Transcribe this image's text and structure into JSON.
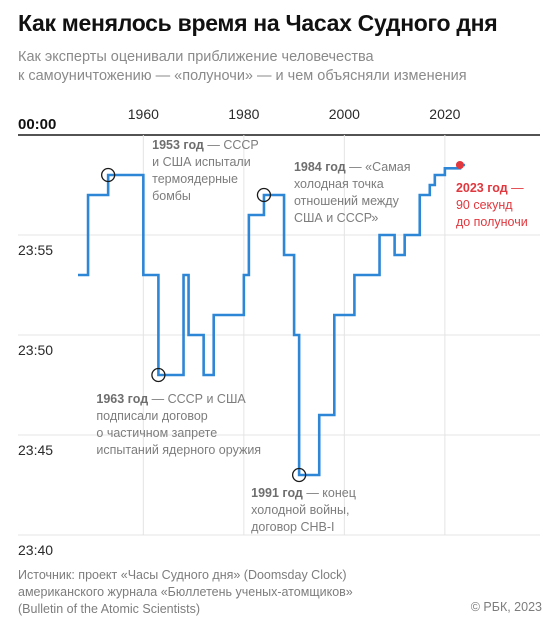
{
  "title": "Как менялось время на Часах Судного дня",
  "subtitle": [
    "Как эксперты оценивали приближение человечества",
    "к самоуничтожению — «полуночи» — и чем объясняли изменения"
  ],
  "source": [
    "Источник: проект «Часы Судного дня» (Doomsday Clock)",
    "американского журнала «Бюллетень ученых-атомщиков»",
    "(Bulletin of the Atomic Scientists)"
  ],
  "copyright": "© РБК, 2023",
  "colors": {
    "line": "#2e86d6",
    "accent": "#e0383e",
    "grid": "#e4e4e4",
    "text": "#7d7d7d"
  },
  "chart_data": {
    "type": "line",
    "step": true,
    "x_ticks": [
      1960,
      1980,
      2000,
      2020
    ],
    "xlim": [
      1947,
      2025
    ],
    "y_ticks": [
      {
        "value": 0,
        "label": "00:00"
      },
      {
        "value": -5,
        "label": "23:55"
      },
      {
        "value": -10,
        "label": "23:50"
      },
      {
        "value": -15,
        "label": "23:45"
      },
      {
        "value": -20,
        "label": "23:40"
      }
    ],
    "ylim": [
      -20,
      0
    ],
    "y_unit": "minutes to midnight (negative)",
    "grid": true,
    "series": [
      {
        "points": [
          [
            1947,
            -7
          ],
          [
            1949,
            -3
          ],
          [
            1953,
            -2
          ],
          [
            1960,
            -7
          ],
          [
            1963,
            -12
          ],
          [
            1968,
            -7
          ],
          [
            1969,
            -10
          ],
          [
            1972,
            -12
          ],
          [
            1974,
            -9
          ],
          [
            1980,
            -7
          ],
          [
            1981,
            -4
          ],
          [
            1984,
            -3
          ],
          [
            1988,
            -6
          ],
          [
            1990,
            -10
          ],
          [
            1991,
            -17
          ],
          [
            1995,
            -14
          ],
          [
            1998,
            -9
          ],
          [
            2002,
            -7
          ],
          [
            2007,
            -5
          ],
          [
            2010,
            -6
          ],
          [
            2012,
            -5
          ],
          [
            2015,
            -3
          ],
          [
            2017,
            -2.5
          ],
          [
            2018,
            -2
          ],
          [
            2020,
            -1.667
          ],
          [
            2023,
            -1.5
          ]
        ]
      }
    ],
    "annotations": [
      {
        "year": 1953,
        "value": -2,
        "marker": "circle",
        "lines": [
          "1953 год — СССР",
          "и США испытали",
          "термоядерные",
          "бомбы"
        ]
      },
      {
        "year": 1963,
        "value": -12,
        "marker": "circle",
        "lines": [
          "1963 год — СССР и США",
          "подписали договор",
          "о частичном запрете",
          "испытаний ядерного оружия"
        ]
      },
      {
        "year": 1984,
        "value": -3,
        "marker": "circle",
        "lines": [
          "1984 год — «Самая",
          "холодная точка",
          "отношений между",
          "США и СССР»"
        ]
      },
      {
        "year": 1991,
        "value": -17,
        "marker": "circle",
        "lines": [
          "1991 год — конец",
          "холодной войны,",
          "договор СНВ-I"
        ]
      },
      {
        "year": 2023,
        "value": -1.5,
        "marker": "dot",
        "lines": [
          "2023 год —",
          "90 секунд",
          "до полуночи"
        ]
      }
    ]
  }
}
